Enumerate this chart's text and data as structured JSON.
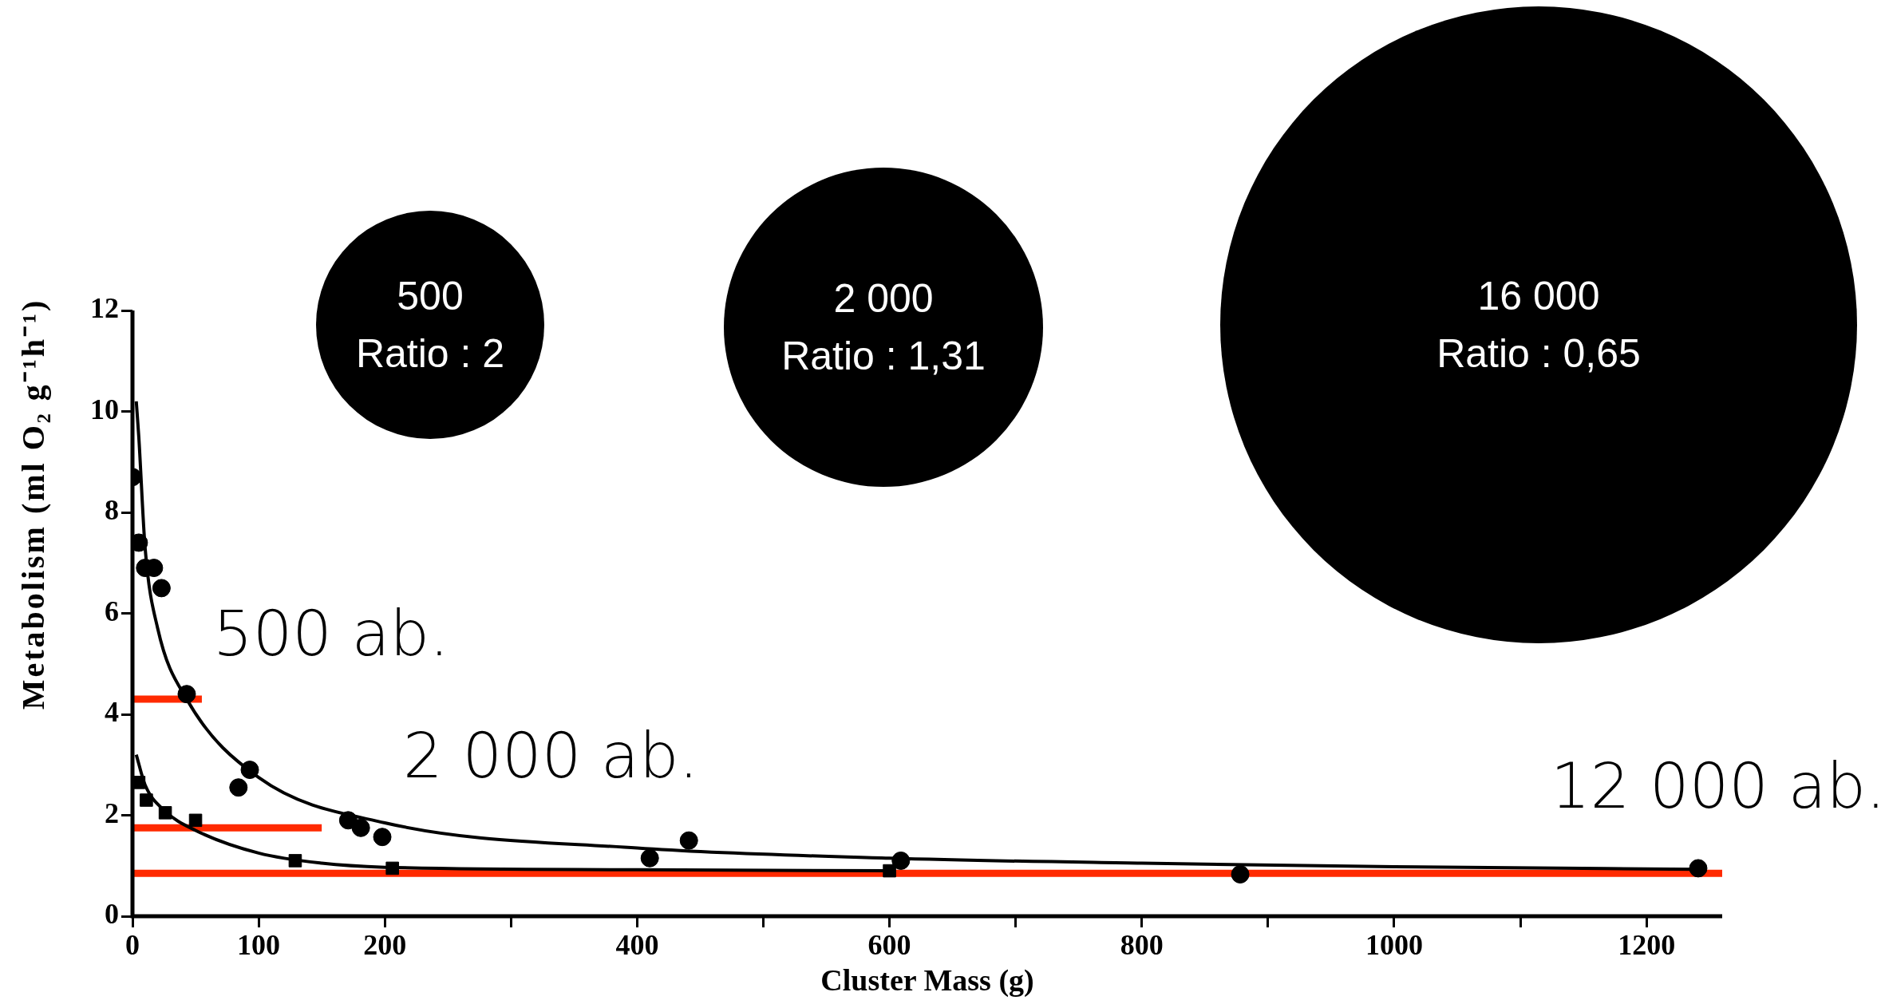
{
  "chart_data": {
    "type": "scatter",
    "xlabel": "Cluster Mass (g)",
    "ylabel": "Metabolism (ml O₂ g⁻¹h⁻¹)",
    "xlim": [
      0,
      1260
    ],
    "ylim": [
      0,
      12
    ],
    "xticks": [
      0,
      100,
      200,
      {
        "value": 300,
        "label": null
      },
      400,
      {
        "value": 500,
        "label": null
      },
      600,
      {
        "value": 700,
        "label": null
      },
      800,
      {
        "value": 900,
        "label": null
      },
      1000,
      {
        "value": 1100,
        "label": null
      },
      1200
    ],
    "yticks": [
      0,
      2,
      4,
      6,
      8,
      10,
      12
    ],
    "series": [
      {
        "type": "scatter",
        "marker": "circle",
        "color": "#000000",
        "x": [
          0,
          5,
          10,
          17,
          23,
          43,
          84,
          93,
          171,
          181,
          198,
          410,
          441,
          609,
          878,
          1241
        ],
        "values": [
          8.7,
          7.4,
          6.9,
          6.9,
          6.5,
          4.4,
          2.55,
          2.9,
          1.9,
          1.75,
          1.57,
          1.15,
          1.5,
          1.1,
          0.83,
          0.95
        ]
      },
      {
        "type": "scatter",
        "marker": "square",
        "color": "#000000",
        "x": [
          5,
          11,
          26,
          50,
          129,
          206,
          600
        ],
        "values": [
          2.65,
          2.3,
          2.05,
          1.9,
          1.1,
          0.95,
          0.9
        ]
      },
      {
        "type": "line",
        "marker": "none",
        "line_style": "solid",
        "color": "#000000",
        "x": [
          3,
          5,
          10,
          20,
          43,
          100,
          200,
          400,
          600,
          800,
          1000,
          1240
        ],
        "values": [
          10.2,
          9.5,
          7.3,
          5.7,
          4.3,
          2.75,
          1.85,
          1.35,
          1.15,
          1.05,
          0.98,
          0.93
        ]
      },
      {
        "type": "line",
        "marker": "none",
        "line_style": "solid",
        "color": "#000000",
        "x": [
          3,
          10,
          25,
          50,
          100,
          150,
          200,
          400,
          600
        ],
        "values": [
          3.2,
          2.6,
          2.1,
          1.7,
          1.25,
          1.05,
          0.97,
          0.92,
          0.9
        ]
      },
      {
        "type": "line",
        "marker": "none",
        "line_style": "solid",
        "color": "#ff2a00",
        "x": [
          0,
          55
        ],
        "values": [
          4.3,
          4.3
        ]
      },
      {
        "type": "line",
        "marker": "none",
        "line_style": "solid",
        "color": "#ff2a00",
        "x": [
          0,
          150
        ],
        "values": [
          1.75,
          1.75
        ]
      },
      {
        "type": "line",
        "marker": "none",
        "line_style": "solid",
        "color": "#ff2a00",
        "x": [
          0,
          1260
        ],
        "values": [
          0.85,
          0.85
        ]
      }
    ],
    "annotations": [
      "500 ab.",
      "2 000 ab.",
      "12 000 ab.",
      "500\nRatio : 2",
      "2 000\nRatio : 1,31",
      "16 000\nRatio : 0,65"
    ]
  }
}
